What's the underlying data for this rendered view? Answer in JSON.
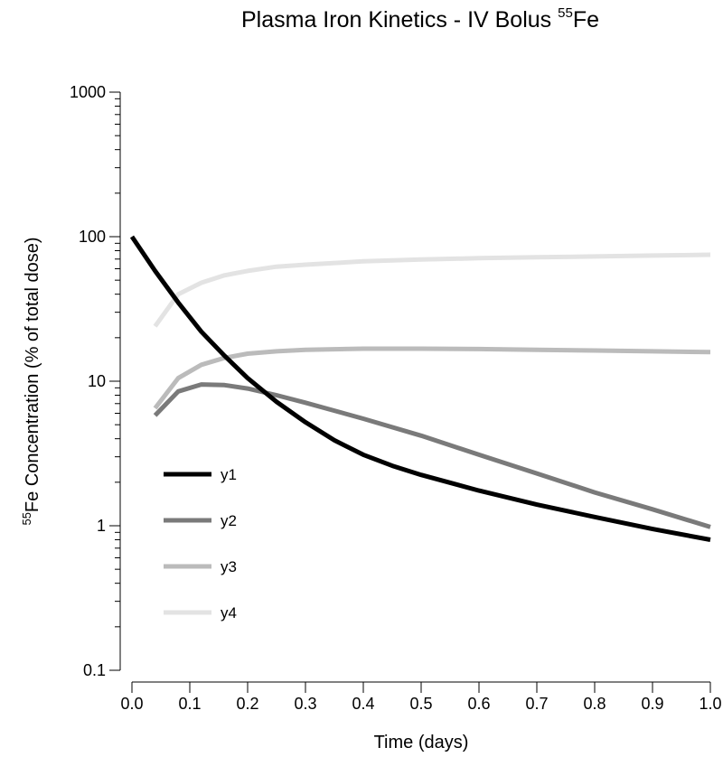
{
  "chart_data": {
    "type": "line",
    "title": "Plasma Iron Kinetics - IV Bolus",
    "title_superscript": "55",
    "title_suffix": "Fe",
    "xlabel": "Time (days)",
    "ylabel_superscript": "55",
    "ylabel": "Fe Concentration (% of total dose)",
    "y_scale": "log",
    "xlim": [
      0.0,
      1.0
    ],
    "ylim": [
      0.1,
      1000
    ],
    "x_ticks": [
      "0.0",
      "0.1",
      "0.2",
      "0.3",
      "0.4",
      "0.5",
      "0.6",
      "0.7",
      "0.8",
      "0.9",
      "1.0"
    ],
    "y_ticks": [
      "0.1",
      "1",
      "10",
      "100",
      "1000"
    ],
    "grid": false,
    "legend_position": "lower-left",
    "series": [
      {
        "name": "y1",
        "color": "#000000",
        "x": [
          0.0,
          0.04,
          0.08,
          0.12,
          0.16,
          0.2,
          0.25,
          0.3,
          0.35,
          0.4,
          0.45,
          0.5,
          0.6,
          0.7,
          0.8,
          0.9,
          1.0
        ],
        "y": [
          100,
          58,
          35,
          22,
          15,
          10.5,
          7.2,
          5.2,
          3.9,
          3.1,
          2.6,
          2.25,
          1.75,
          1.4,
          1.15,
          0.95,
          0.8
        ]
      },
      {
        "name": "y2",
        "color": "#7a7a7a",
        "x": [
          0.04,
          0.08,
          0.12,
          0.16,
          0.2,
          0.25,
          0.3,
          0.4,
          0.5,
          0.6,
          0.7,
          0.8,
          0.9,
          1.0
        ],
        "y": [
          5.8,
          8.5,
          9.5,
          9.4,
          8.9,
          8.0,
          7.1,
          5.5,
          4.2,
          3.1,
          2.3,
          1.7,
          1.3,
          0.98
        ]
      },
      {
        "name": "y3",
        "color": "#bbbbbb",
        "x": [
          0.04,
          0.08,
          0.12,
          0.16,
          0.2,
          0.25,
          0.3,
          0.4,
          0.5,
          0.6,
          0.7,
          0.8,
          0.9,
          1.0
        ],
        "y": [
          6.5,
          10.5,
          13,
          14.5,
          15.5,
          16.1,
          16.5,
          16.8,
          16.8,
          16.7,
          16.5,
          16.3,
          16.1,
          15.9
        ]
      },
      {
        "name": "y4",
        "color": "#e3e3e3",
        "x": [
          0.04,
          0.08,
          0.12,
          0.16,
          0.2,
          0.25,
          0.3,
          0.4,
          0.5,
          0.6,
          0.7,
          0.8,
          0.9,
          1.0
        ],
        "y": [
          24,
          40,
          48,
          54,
          58,
          62,
          64,
          67.5,
          69.5,
          71,
          72,
          73,
          74,
          75
        ]
      }
    ]
  }
}
